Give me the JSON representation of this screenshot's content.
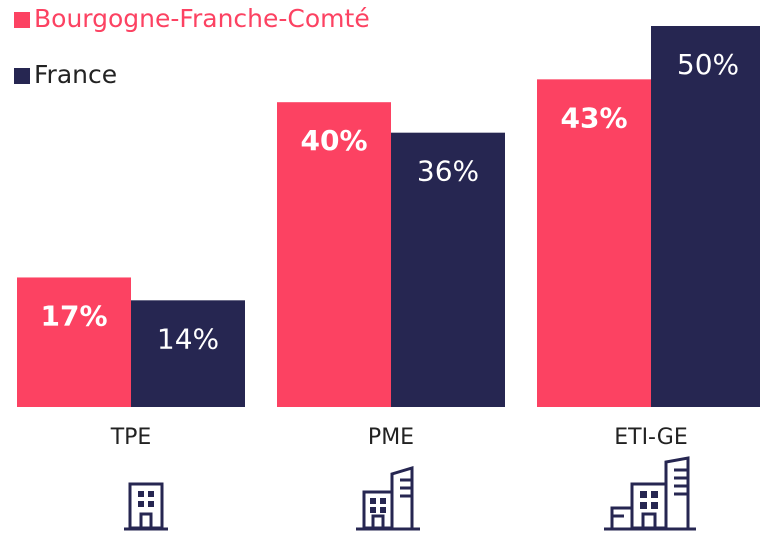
{
  "chart_data": {
    "type": "bar",
    "categories": [
      "TPE",
      "PME",
      "ETI-GE"
    ],
    "series": [
      {
        "name": "Bourgogne-Franche-Comté",
        "color": "#fc4262",
        "values": [
          17,
          40,
          43
        ],
        "value_labels": [
          "17%",
          "40%",
          "43%"
        ]
      },
      {
        "name": "France",
        "color": "#262651",
        "values": [
          14,
          36,
          50
        ],
        "value_labels": [
          "14%",
          "36%",
          "50%"
        ]
      }
    ],
    "legend": "top-left"
  }
}
